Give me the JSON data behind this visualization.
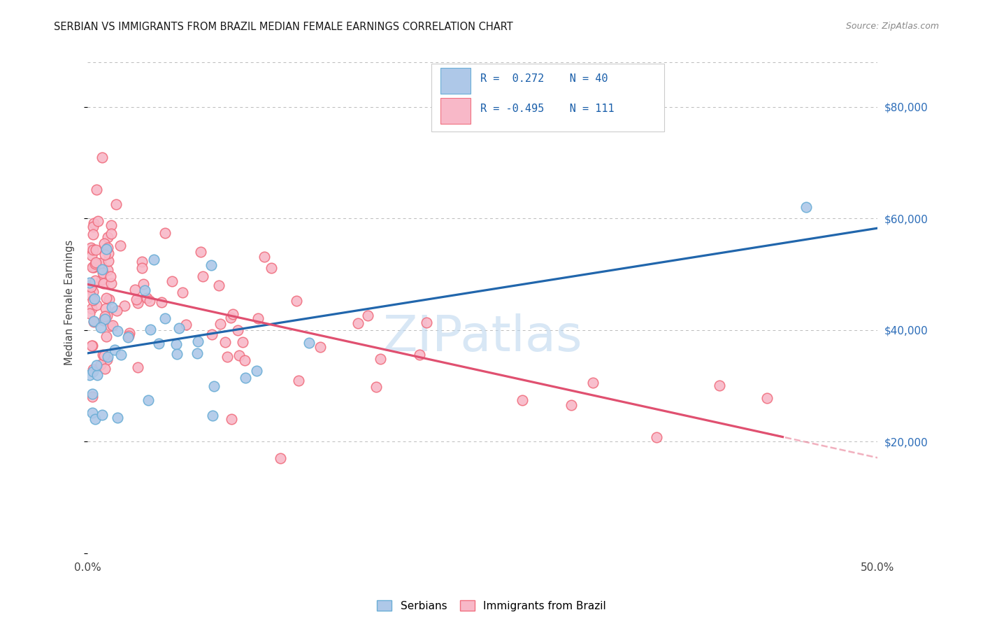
{
  "title": "SERBIAN VS IMMIGRANTS FROM BRAZIL MEDIAN FEMALE EARNINGS CORRELATION CHART",
  "source": "Source: ZipAtlas.com",
  "ylabel": "Median Female Earnings",
  "x_tick_labels": [
    "0.0%",
    "",
    "",
    "",
    "",
    "50.0%"
  ],
  "legend_r_serbian": "R =  0.272",
  "legend_n_serbian": "N = 40",
  "legend_r_brazil": "R = -0.495",
  "legend_n_brazil": "N = 111",
  "color_serbian_edge": "#6baed6",
  "color_brazil_edge": "#f07080",
  "color_serbian_line": "#2166ac",
  "color_brazil_line": "#e05070",
  "color_serbian_fill": "#aec8e8",
  "color_brazil_fill": "#f8b8c8",
  "watermark": "ZIPatlas",
  "xlim": [
    0.0,
    0.5
  ],
  "ylim": [
    0,
    90000
  ],
  "background_color": "#ffffff",
  "grid_color": "#bbbbbb"
}
